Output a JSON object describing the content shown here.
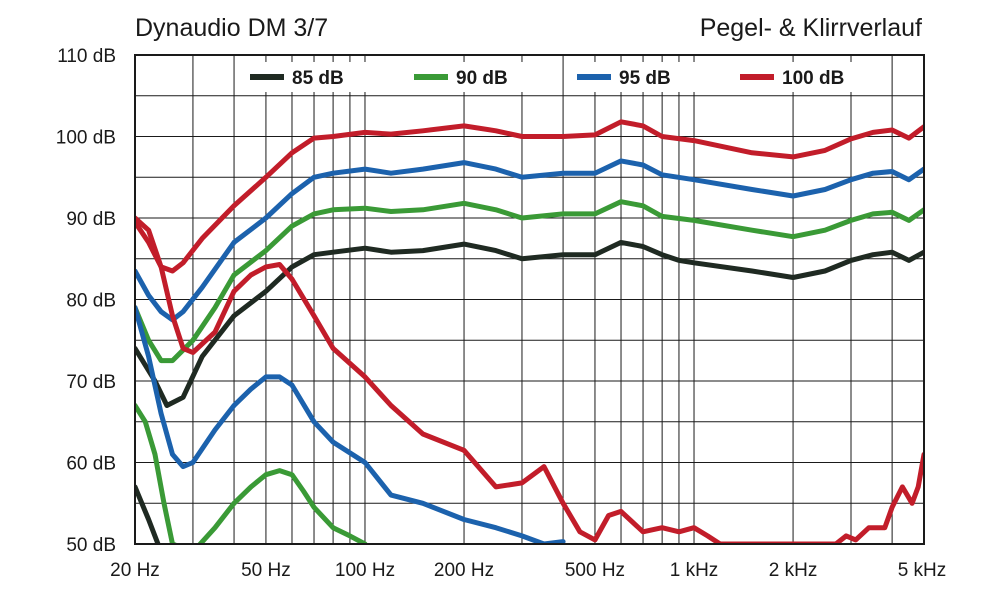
{
  "chart_data": {
    "type": "line",
    "title": "Dynaudio DM 3/7",
    "subtitle": "Pegel- & Klirrverlauf",
    "x_scale": "log",
    "xlim": [
      20,
      5000
    ],
    "ylim": [
      50,
      110
    ],
    "grid": true,
    "legend_position": "top",
    "y_ticks": [
      {
        "value": 50,
        "label": "50 dB"
      },
      {
        "value": 60,
        "label": "60 dB"
      },
      {
        "value": 70,
        "label": "70 dB"
      },
      {
        "value": 80,
        "label": "80 dB"
      },
      {
        "value": 90,
        "label": "90 dB"
      },
      {
        "value": 100,
        "label": "100 dB"
      },
      {
        "value": 110,
        "label": "110 dB"
      }
    ],
    "x_ticks": [
      {
        "value": 20,
        "label": "20 Hz"
      },
      {
        "value": 50,
        "label": "50 Hz"
      },
      {
        "value": 100,
        "label": "100 Hz"
      },
      {
        "value": 200,
        "label": "200 Hz"
      },
      {
        "value": 500,
        "label": "500 Hz"
      },
      {
        "value": 1000,
        "label": "1 kHz"
      },
      {
        "value": 2000,
        "label": "2 kHz"
      },
      {
        "value": 5000,
        "label": "5 kHz"
      }
    ],
    "series": [
      {
        "name": "85 dB",
        "color": "#1f2a22",
        "level": [
          [
            20,
            74
          ],
          [
            23,
            70
          ],
          [
            25,
            67
          ],
          [
            28,
            68
          ],
          [
            32,
            73
          ],
          [
            40,
            78
          ],
          [
            50,
            81
          ],
          [
            60,
            84
          ],
          [
            70,
            85.5
          ],
          [
            80,
            85.8
          ],
          [
            100,
            86.3
          ],
          [
            120,
            85.8
          ],
          [
            150,
            86
          ],
          [
            200,
            86.8
          ],
          [
            250,
            86
          ],
          [
            300,
            85
          ],
          [
            400,
            85.5
          ],
          [
            500,
            85.5
          ],
          [
            600,
            87
          ],
          [
            700,
            86.5
          ],
          [
            800,
            85.5
          ],
          [
            900,
            84.8
          ],
          [
            1000,
            84.5
          ],
          [
            1500,
            83.5
          ],
          [
            2000,
            82.7
          ],
          [
            2500,
            83.5
          ],
          [
            3000,
            84.8
          ],
          [
            3500,
            85.5
          ],
          [
            4000,
            85.8
          ],
          [
            4500,
            84.8
          ],
          [
            5000,
            85.8
          ]
        ],
        "distortion": [
          [
            20,
            57
          ],
          [
            22,
            53
          ],
          [
            23.5,
            50
          ]
        ]
      },
      {
        "name": "90 dB",
        "color": "#3a9a36",
        "level": [
          [
            20,
            79
          ],
          [
            22,
            75
          ],
          [
            24,
            72.5
          ],
          [
            26,
            72.5
          ],
          [
            30,
            75
          ],
          [
            35,
            79
          ],
          [
            40,
            83
          ],
          [
            50,
            86
          ],
          [
            60,
            89
          ],
          [
            70,
            90.5
          ],
          [
            80,
            91
          ],
          [
            100,
            91.2
          ],
          [
            120,
            90.8
          ],
          [
            150,
            91
          ],
          [
            200,
            91.8
          ],
          [
            250,
            91
          ],
          [
            300,
            90
          ],
          [
            400,
            90.5
          ],
          [
            500,
            90.5
          ],
          [
            600,
            92
          ],
          [
            700,
            91.5
          ],
          [
            800,
            90.2
          ],
          [
            1000,
            89.7
          ],
          [
            1500,
            88.5
          ],
          [
            2000,
            87.7
          ],
          [
            2500,
            88.5
          ],
          [
            3000,
            89.7
          ],
          [
            3500,
            90.5
          ],
          [
            4000,
            90.7
          ],
          [
            4500,
            89.7
          ],
          [
            5000,
            91
          ]
        ],
        "distortion": [
          [
            20,
            67
          ],
          [
            21.5,
            65
          ],
          [
            23,
            61
          ],
          [
            24.5,
            55
          ],
          [
            26,
            50
          ],
          [
            30,
            49
          ],
          [
            35,
            52
          ],
          [
            40,
            55
          ],
          [
            45,
            57
          ],
          [
            50,
            58.5
          ],
          [
            55,
            59
          ],
          [
            60,
            58.5
          ],
          [
            65,
            56.5
          ],
          [
            70,
            54.5
          ],
          [
            80,
            52
          ],
          [
            90,
            51
          ],
          [
            100,
            50
          ]
        ]
      },
      {
        "name": "95 dB",
        "color": "#1c62ad",
        "level": [
          [
            20,
            83.5
          ],
          [
            22,
            80.5
          ],
          [
            24,
            78.5
          ],
          [
            26,
            77.5
          ],
          [
            28,
            78.5
          ],
          [
            32,
            81.5
          ],
          [
            40,
            87
          ],
          [
            50,
            90
          ],
          [
            60,
            93
          ],
          [
            70,
            95
          ],
          [
            80,
            95.5
          ],
          [
            100,
            96
          ],
          [
            120,
            95.5
          ],
          [
            150,
            96
          ],
          [
            200,
            96.8
          ],
          [
            250,
            96
          ],
          [
            300,
            95
          ],
          [
            400,
            95.5
          ],
          [
            500,
            95.5
          ],
          [
            600,
            97
          ],
          [
            700,
            96.5
          ],
          [
            800,
            95.3
          ],
          [
            1000,
            94.7
          ],
          [
            1500,
            93.5
          ],
          [
            2000,
            92.7
          ],
          [
            2500,
            93.5
          ],
          [
            3000,
            94.7
          ],
          [
            3500,
            95.5
          ],
          [
            4000,
            95.7
          ],
          [
            4500,
            94.7
          ],
          [
            5000,
            96
          ]
        ],
        "distortion": [
          [
            20,
            79
          ],
          [
            22,
            73
          ],
          [
            24,
            66
          ],
          [
            26,
            61
          ],
          [
            28,
            59.5
          ],
          [
            30,
            60
          ],
          [
            35,
            64
          ],
          [
            40,
            67
          ],
          [
            45,
            69
          ],
          [
            50,
            70.5
          ],
          [
            55,
            70.5
          ],
          [
            60,
            69.5
          ],
          [
            70,
            65
          ],
          [
            80,
            62.5
          ],
          [
            100,
            60
          ],
          [
            120,
            56
          ],
          [
            150,
            55
          ],
          [
            200,
            53
          ],
          [
            250,
            52
          ],
          [
            300,
            51
          ],
          [
            350,
            50
          ],
          [
            400,
            50.3
          ]
        ]
      },
      {
        "name": "100 dB",
        "color": "#c21d2a",
        "level": [
          [
            20,
            89.5
          ],
          [
            22,
            87
          ],
          [
            24,
            84
          ],
          [
            26,
            83.5
          ],
          [
            28,
            84.5
          ],
          [
            32,
            87.5
          ],
          [
            40,
            91.5
          ],
          [
            50,
            95
          ],
          [
            60,
            98
          ],
          [
            70,
            99.8
          ],
          [
            80,
            100
          ],
          [
            100,
            100.5
          ],
          [
            120,
            100.3
          ],
          [
            150,
            100.7
          ],
          [
            200,
            101.3
          ],
          [
            250,
            100.7
          ],
          [
            300,
            100
          ],
          [
            400,
            100
          ],
          [
            500,
            100.2
          ],
          [
            600,
            101.8
          ],
          [
            700,
            101.3
          ],
          [
            800,
            100
          ],
          [
            1000,
            99.5
          ],
          [
            1500,
            98
          ],
          [
            2000,
            97.5
          ],
          [
            2500,
            98.3
          ],
          [
            3000,
            99.7
          ],
          [
            3500,
            100.5
          ],
          [
            4000,
            100.8
          ],
          [
            4500,
            99.8
          ],
          [
            5000,
            101.2
          ]
        ],
        "distortion": [
          [
            20,
            90
          ],
          [
            22,
            88.5
          ],
          [
            24,
            84
          ],
          [
            26,
            78
          ],
          [
            28,
            74
          ],
          [
            30,
            73.5
          ],
          [
            35,
            76
          ],
          [
            40,
            81
          ],
          [
            45,
            83
          ],
          [
            50,
            84
          ],
          [
            55,
            84.3
          ],
          [
            60,
            82.5
          ],
          [
            70,
            78
          ],
          [
            80,
            74
          ],
          [
            100,
            70.5
          ],
          [
            120,
            67
          ],
          [
            150,
            63.5
          ],
          [
            200,
            61.5
          ],
          [
            250,
            57
          ],
          [
            300,
            57.5
          ],
          [
            350,
            59.5
          ],
          [
            400,
            55
          ],
          [
            450,
            51.5
          ],
          [
            500,
            50.5
          ],
          [
            550,
            53.5
          ],
          [
            600,
            54
          ],
          [
            700,
            51.5
          ],
          [
            800,
            52
          ],
          [
            900,
            51.5
          ],
          [
            1000,
            52
          ],
          [
            1100,
            51
          ],
          [
            1200,
            50
          ],
          [
            2700,
            50
          ],
          [
            2900,
            51
          ],
          [
            3100,
            50.5
          ],
          [
            3400,
            52
          ],
          [
            3800,
            52
          ],
          [
            4000,
            54.5
          ],
          [
            4300,
            57
          ],
          [
            4600,
            55
          ],
          [
            4800,
            57
          ],
          [
            5000,
            61
          ]
        ]
      }
    ]
  }
}
